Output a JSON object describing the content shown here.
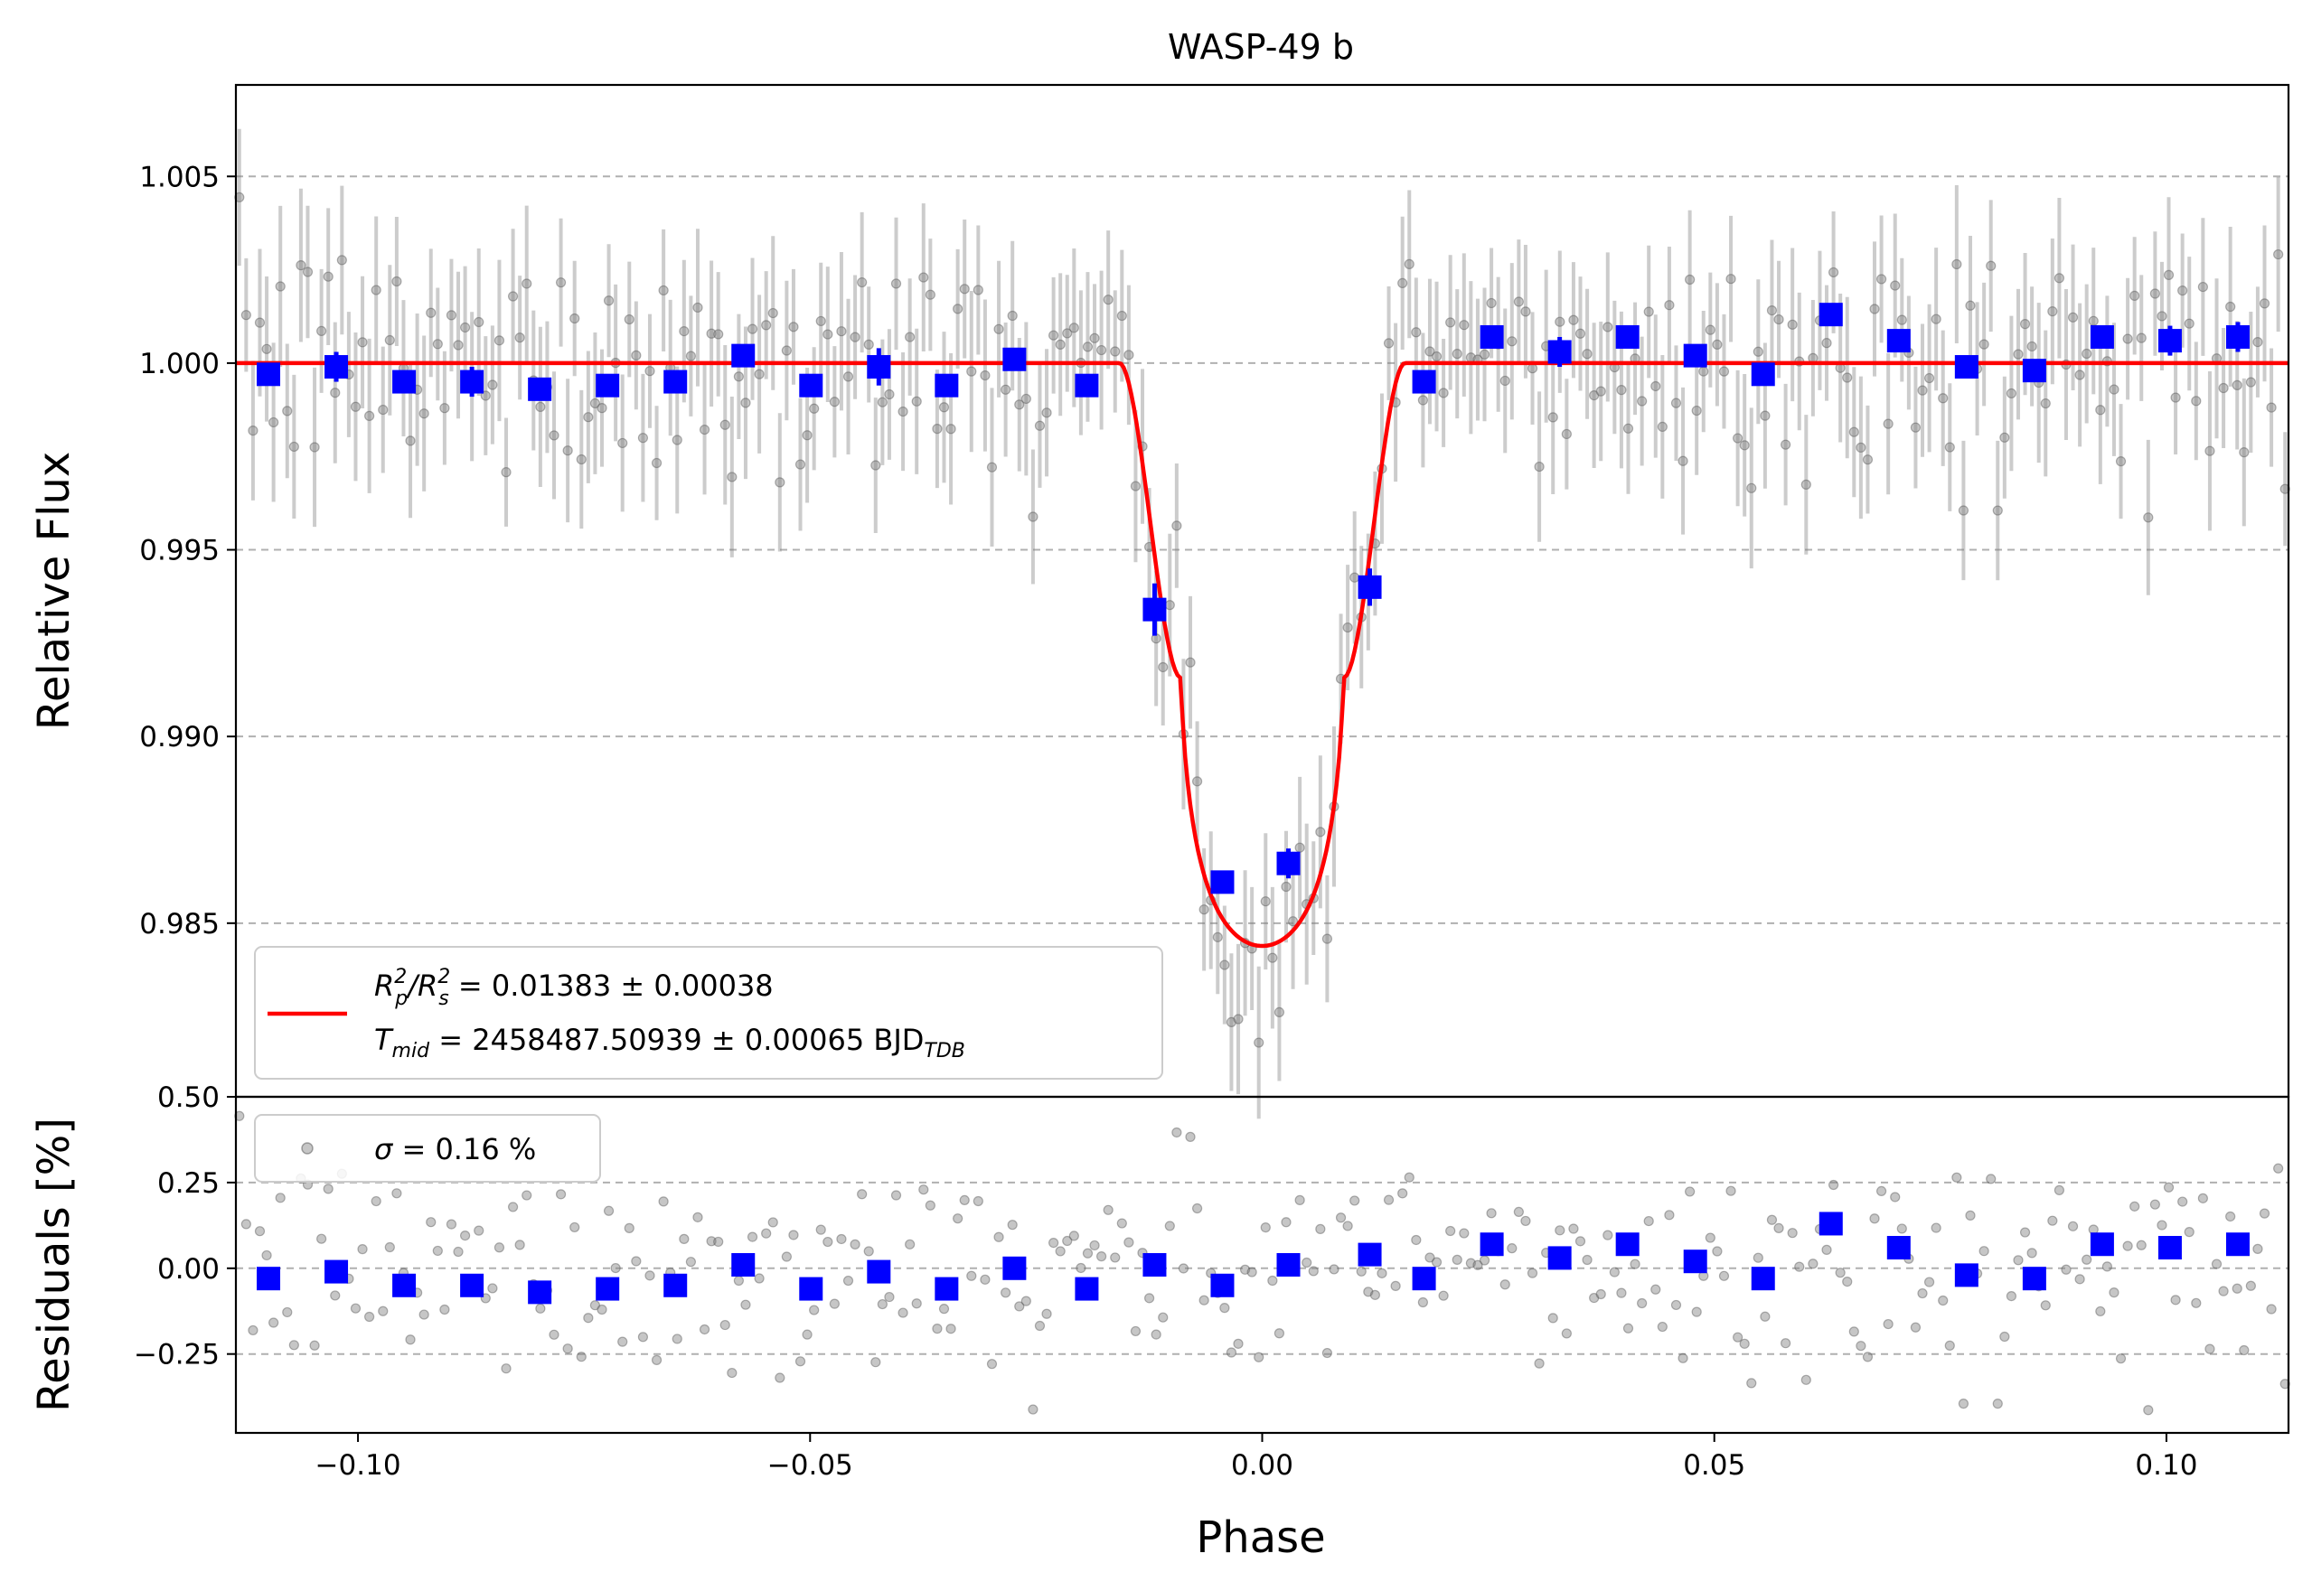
{
  "chart_data": {
    "type": "scatter",
    "title": "WASP-49 b",
    "xlabel": "Phase",
    "top_panel": {
      "ylabel": "Relative Flux",
      "xlim": [
        -0.1135,
        0.1135
      ],
      "ylim": [
        0.98035,
        1.00745
      ],
      "yticks": [
        {
          "value": 0.985,
          "label": "0.985"
        },
        {
          "value": 0.99,
          "label": "0.990"
        },
        {
          "value": 0.995,
          "label": "0.995"
        },
        {
          "value": 1.0,
          "label": "1.000"
        },
        {
          "value": 1.005,
          "label": "1.005"
        }
      ],
      "grid": "horizontal-dashed",
      "legend": {
        "placement": "lower-left",
        "line1_prefix_R": "R",
        "line1_sub_p": "p",
        "line1_sup_2": "2",
        "line1_slash": "/R",
        "line1_sub_s": "s",
        "line1_value": " = 0.01383 ± 0.00038",
        "line2_T": "T",
        "line2_sub_mid": "mid",
        "line2_value": " = 2458487.50939 ± 0.00065 BJD",
        "line2_sub_tdb": "TDB"
      },
      "model": {
        "name": "R_p^2/R_s^2 = 0.01383 ± 0.00038; T_mid = 2458487.50939 ± 0.00065 BJD_TDB",
        "color": "#ff0000",
        "depth": 0.01383,
        "t_mid_phase": 0.0,
        "t14_half_phase": 0.0158,
        "ingress_phase": 0.0068,
        "limb_darkening": [
          0.35,
          0.25
        ]
      },
      "binned": {
        "color": "#0000ff",
        "x": [
          -0.1099,
          -0.1024,
          -0.0949,
          -0.0874,
          -0.0799,
          -0.0724,
          -0.0649,
          -0.0574,
          -0.0499,
          -0.0424,
          -0.0349,
          -0.0274,
          -0.0194,
          -0.0119,
          -0.0044,
          0.0029,
          0.0119,
          0.0179,
          0.0254,
          0.0329,
          0.0404,
          0.0479,
          0.0554,
          0.0629,
          0.0704,
          0.0779,
          0.0854,
          0.0929,
          0.1004,
          0.1079
        ],
        "y": [
          0.9997,
          0.9999,
          0.9995,
          0.9995,
          0.9993,
          0.9994,
          0.9995,
          1.0002,
          0.9994,
          0.9999,
          0.9994,
          1.0001,
          0.9994,
          0.9934,
          0.9861,
          0.9866,
          0.994,
          0.9995,
          1.0007,
          1.0003,
          1.0007,
          1.0002,
          0.9997,
          1.0013,
          1.0006,
          0.9999,
          0.9998,
          1.0007,
          1.0006,
          1.0007
        ],
        "yerr": [
          0.0002,
          0.0004,
          0.0002,
          0.0004,
          0.0003,
          0.0002,
          0.0002,
          0.0002,
          0.0002,
          0.0005,
          0.0002,
          0.0002,
          0.0002,
          0.0007,
          0.0003,
          0.0004,
          0.0005,
          0.0003,
          0.0003,
          0.0004,
          0.0003,
          0.0003,
          0.0003,
          0.0003,
          0.0003,
          0.0003,
          0.0003,
          0.0003,
          0.0004,
          0.0004
        ]
      },
      "raw": {
        "color": "#808080",
        "n_points": 300,
        "x_range": [
          -0.1135,
          0.1135
        ],
        "scatter_sigma": 0.0016,
        "typical_error": 0.0018
      }
    },
    "bottom_panel": {
      "ylabel": "Residuals [%]",
      "ylim": [
        -0.48,
        0.5
      ],
      "yticks": [
        {
          "value": -0.25,
          "label": "−0.25"
        },
        {
          "value": 0.0,
          "label": "0.00"
        },
        {
          "value": 0.25,
          "label": "0.25"
        },
        {
          "value": 0.5,
          "label": "0.50"
        }
      ],
      "grid": "horizontal-dashed",
      "legend": {
        "placement": "upper-left",
        "sigma_symbol": "σ",
        "sigma_text": " = 0.16 %"
      },
      "binned": {
        "color": "#0000ff",
        "x": [
          -0.1099,
          -0.1024,
          -0.0949,
          -0.0874,
          -0.0799,
          -0.0724,
          -0.0649,
          -0.0574,
          -0.0499,
          -0.0424,
          -0.0349,
          -0.0274,
          -0.0194,
          -0.0119,
          -0.0044,
          0.0029,
          0.0119,
          0.0179,
          0.0254,
          0.0329,
          0.0404,
          0.0479,
          0.0554,
          0.0629,
          0.0704,
          0.0779,
          0.0854,
          0.0929,
          0.1004,
          0.1079
        ],
        "y": [
          -0.03,
          -0.01,
          -0.05,
          -0.05,
          -0.07,
          -0.06,
          -0.05,
          0.01,
          -0.06,
          -0.01,
          -0.06,
          0.0,
          -0.06,
          0.01,
          -0.05,
          0.01,
          0.04,
          -0.03,
          0.07,
          0.03,
          0.07,
          0.02,
          -0.03,
          0.13,
          0.06,
          -0.02,
          -0.03,
          0.07,
          0.06,
          0.07
        ]
      }
    },
    "xticks": [
      {
        "value": -0.1,
        "label": "−0.10"
      },
      {
        "value": -0.05,
        "label": "−0.05"
      },
      {
        "value": 0.0,
        "label": "0.00"
      },
      {
        "value": 0.05,
        "label": "0.05"
      },
      {
        "value": 0.1,
        "label": "0.10"
      }
    ]
  }
}
